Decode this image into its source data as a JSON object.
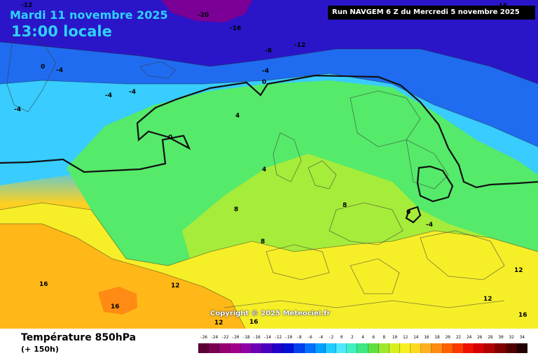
{
  "header": {
    "date": "Mardi 11 novembre 2025",
    "local_time": "13:00 locale",
    "run": "Run NAVGEM 6 Z du Mercredi 5 novembre 2025"
  },
  "map": {
    "copyright": "Copyright © 2025 Meteociel.fr",
    "isotherm_labels": [
      "-12",
      "-20",
      "-16",
      "-12",
      "-8",
      "-4",
      "0",
      "-4",
      "-4",
      "-4",
      "-4",
      "0",
      "0",
      "4",
      "4",
      "8",
      "8",
      "8",
      "12",
      "12",
      "16",
      "16",
      "16",
      "12",
      "16",
      "-4",
      "12",
      "0",
      "-16"
    ]
  },
  "footer": {
    "parameter": "Température 850hPa",
    "forecast_offset": "(+ 150h)"
  },
  "color_scale": {
    "labels": [
      "-26",
      "-24",
      "-22",
      "-20",
      "-18",
      "-16",
      "-14",
      "-12",
      "-10",
      "-8",
      "-6",
      "-4",
      "-2",
      "0",
      "2",
      "4",
      "6",
      "8",
      "10",
      "12",
      "14",
      "16",
      "18",
      "20",
      "22",
      "24",
      "26",
      "28",
      "30",
      "32",
      "34"
    ],
    "colors": [
      "#5c0036",
      "#7a0050",
      "#960070",
      "#a0008a",
      "#9000a6",
      "#6c00b4",
      "#4a00c0",
      "#2000c8",
      "#0010d8",
      "#0040ee",
      "#0070ff",
      "#00a0ff",
      "#20ccff",
      "#50e8ff",
      "#40f0c0",
      "#40e880",
      "#60e040",
      "#a0e830",
      "#d8f020",
      "#f8f020",
      "#ffd820",
      "#ffb020",
      "#ff8c10",
      "#ff6000",
      "#ff3800",
      "#f01000",
      "#d80000",
      "#b00000",
      "#800000",
      "#500000",
      "#200000"
    ]
  }
}
